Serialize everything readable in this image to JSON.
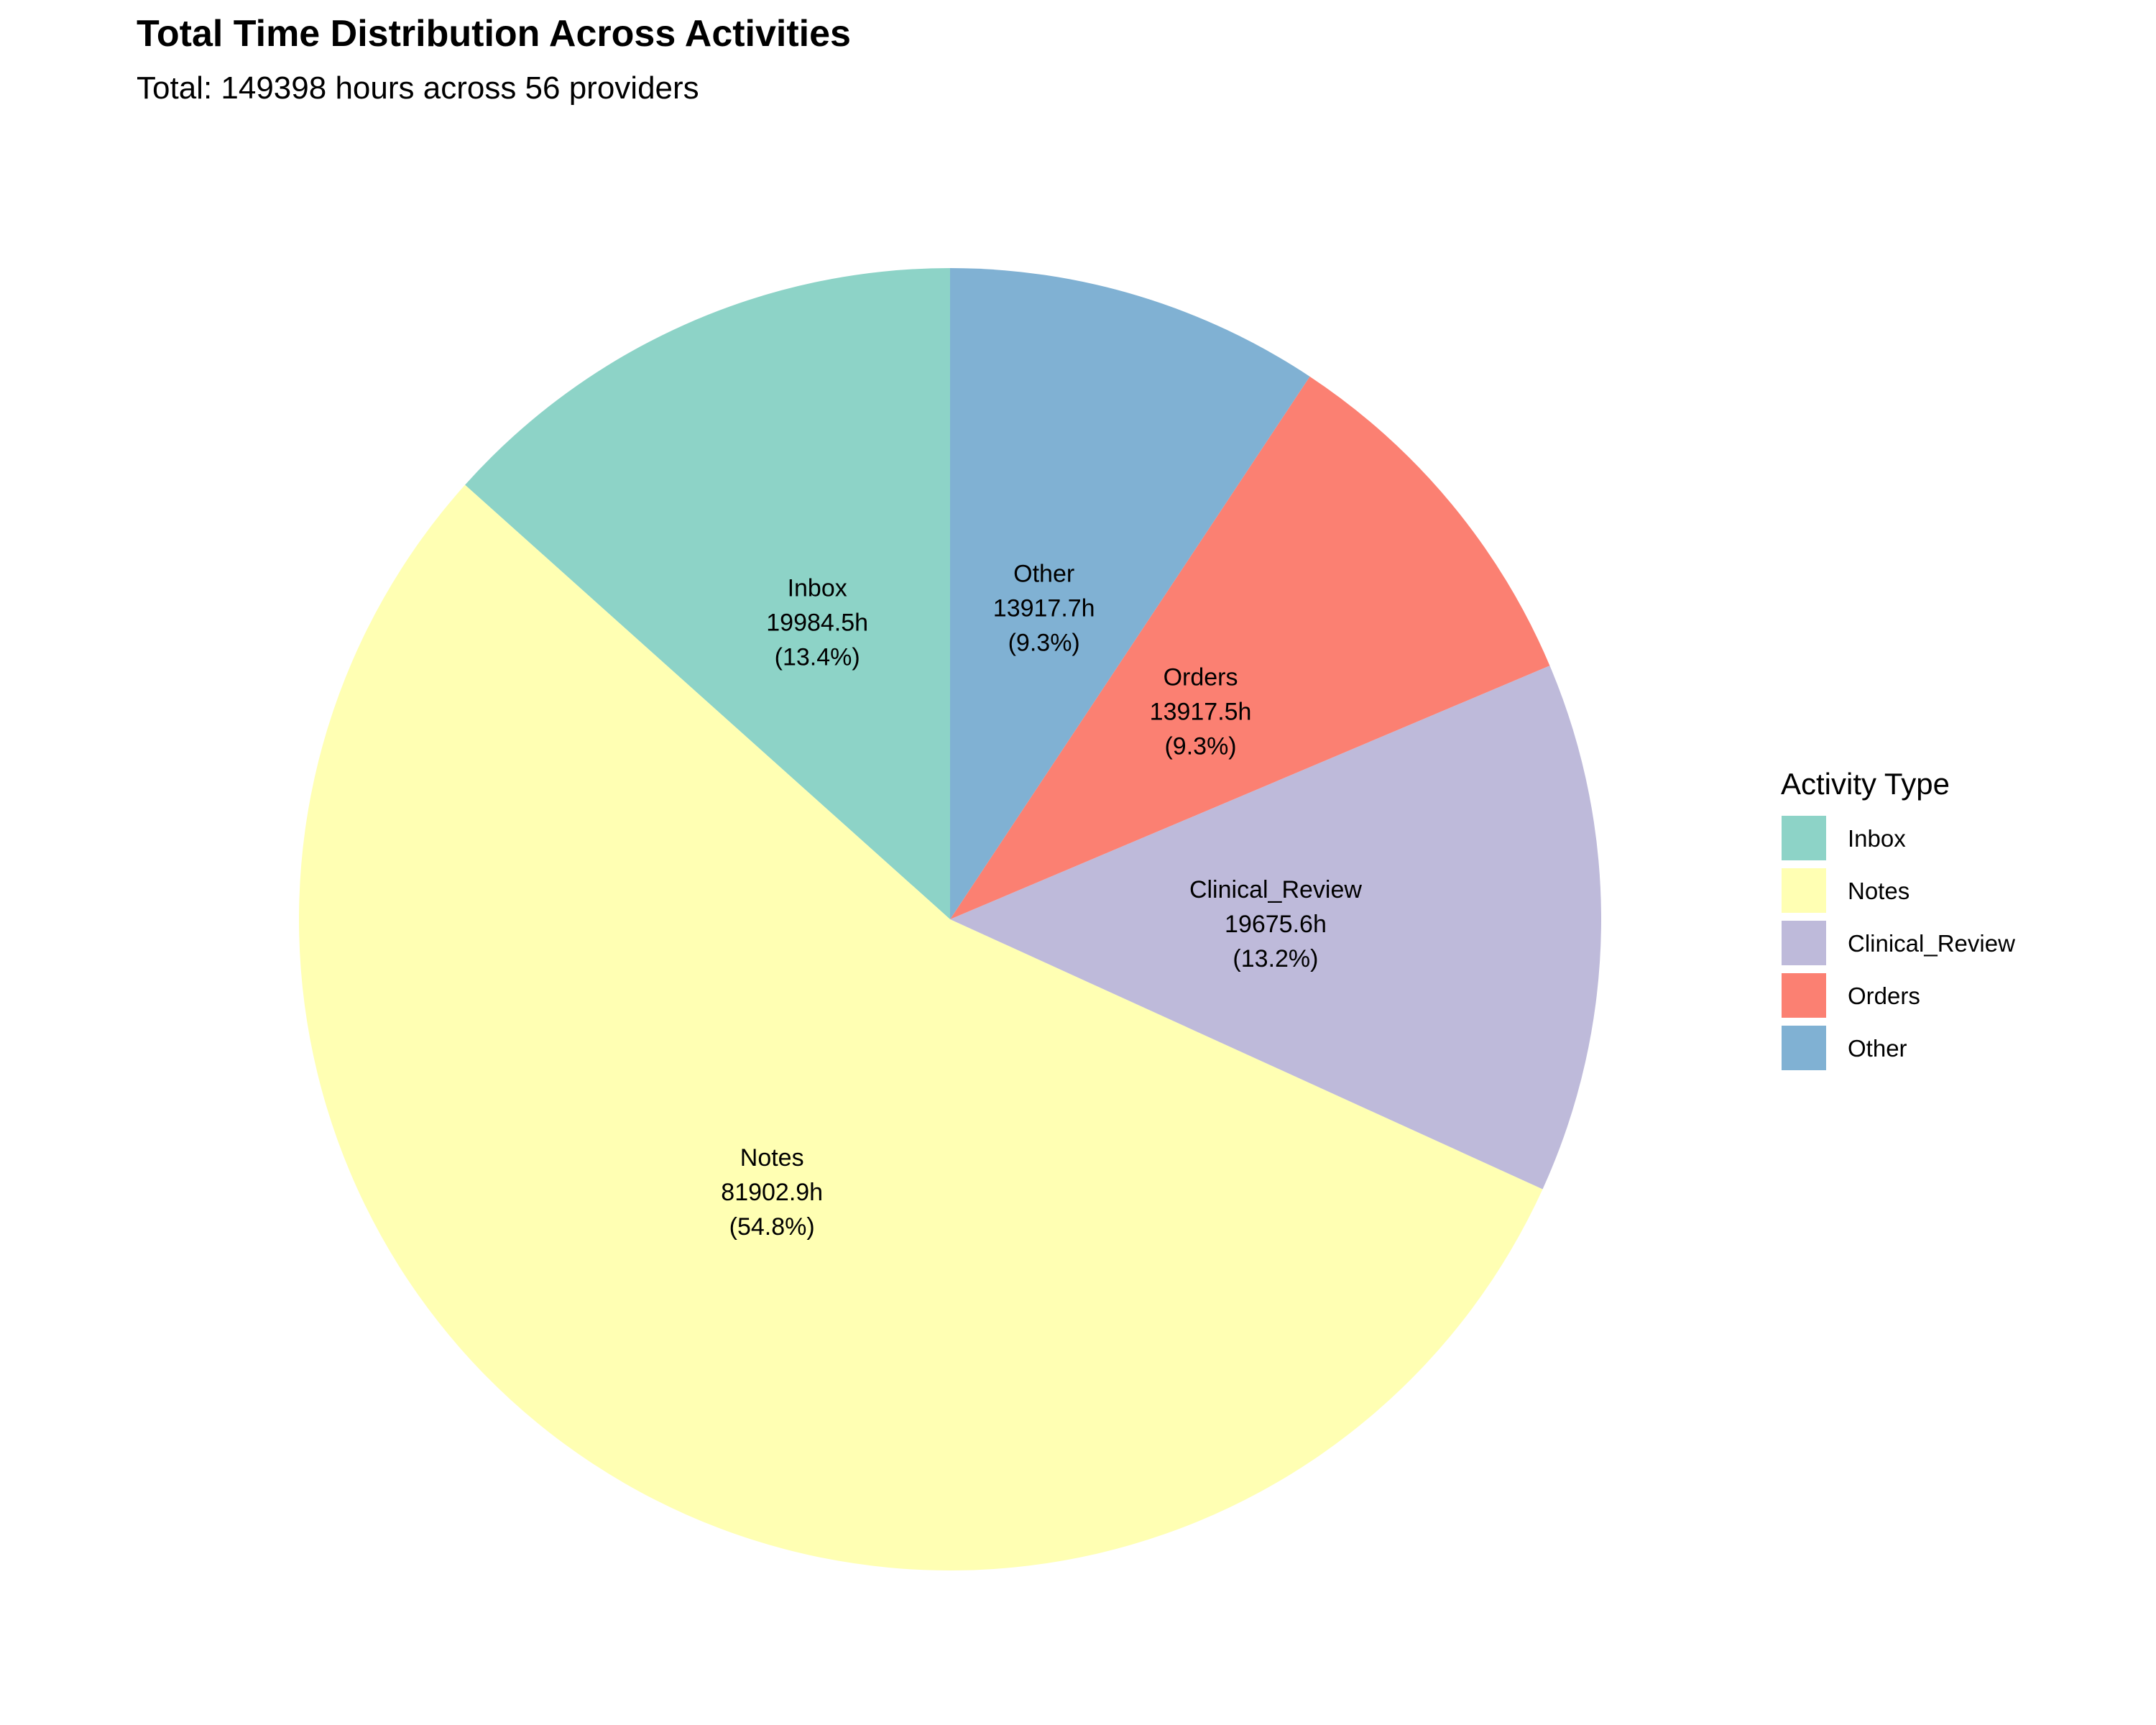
{
  "chart_data": {
    "type": "pie",
    "title": "Total Time Distribution Across Activities",
    "subtitle": "Total: 149398 hours across 56 providers",
    "legend": {
      "title": "Activity Type",
      "position": "right"
    },
    "start_angle_deg": 0,
    "direction": "counterclockwise",
    "slices": [
      {
        "name": "Inbox",
        "value": 19984.5,
        "value_label": "19984.5h",
        "percent_label": "(13.4%)",
        "color": "#8DD3C7"
      },
      {
        "name": "Notes",
        "value": 81902.9,
        "value_label": "81902.9h",
        "percent_label": "(54.8%)",
        "color": "#FFFFB3"
      },
      {
        "name": "Clinical_Review",
        "value": 19675.6,
        "value_label": "19675.6h",
        "percent_label": "(13.2%)",
        "color": "#BEBADA"
      },
      {
        "name": "Orders",
        "value": 13917.5,
        "value_label": "13917.5h",
        "percent_label": "(9.3%)",
        "color": "#FB8072"
      },
      {
        "name": "Other",
        "value": 13917.7,
        "value_label": "13917.7h",
        "percent_label": "(9.3%)",
        "color": "#80B1D3"
      }
    ]
  }
}
